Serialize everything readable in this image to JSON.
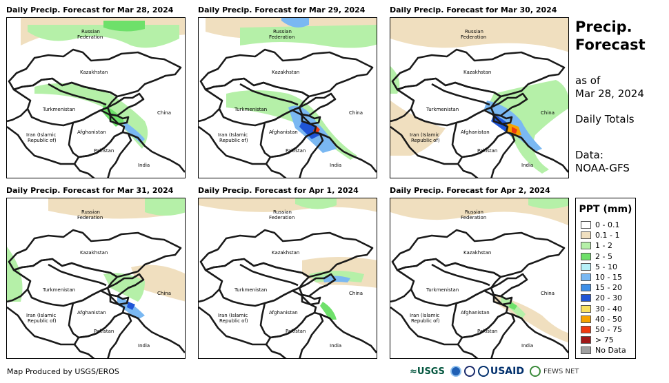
{
  "panels": [
    {
      "title": "Daily Precip. Forecast for Mar 28, 2024"
    },
    {
      "title": "Daily Precip. Forecast for Mar 29, 2024"
    },
    {
      "title": "Daily Precip. Forecast for Mar 30, 2024"
    },
    {
      "title": "Daily Precip. Forecast for Mar 31, 2024"
    },
    {
      "title": "Daily Precip. Forecast for Apr 1, 2024"
    },
    {
      "title": "Daily Precip. Forecast for Apr 2, 2024"
    }
  ],
  "map_labels": {
    "russia": "Russian",
    "russia2": "Federation",
    "kazakhstan": "Kazakhstan",
    "turkmenistan": "Turkmenistan",
    "china": "China",
    "iran": "Iran  (Islamic",
    "iran2": "Republic of)",
    "afghanistan": "Afghanistan",
    "pakistan": "Pakistan",
    "india": "India"
  },
  "sidebar": {
    "title_line1": "Precip.",
    "title_line2": "Forecast",
    "asof_line1": "as of",
    "asof_line2": "Mar 28, 2024",
    "totals": "Daily Totals",
    "data_line1": "Data:",
    "data_line2": "NOAA-GFS"
  },
  "legend": {
    "title": "PPT (mm)",
    "items": [
      {
        "label": "0 - 0.1",
        "color": "#ffffff"
      },
      {
        "label": "0.1 - 1",
        "color": "#f0dfbf"
      },
      {
        "label": "1 - 2",
        "color": "#b5f0a8"
      },
      {
        "label": "2 - 5",
        "color": "#6ee06a"
      },
      {
        "label": "5 - 10",
        "color": "#b6f0f8"
      },
      {
        "label": "10 - 15",
        "color": "#7ab8f2"
      },
      {
        "label": "15 - 20",
        "color": "#3d8fe8"
      },
      {
        "label": "20 - 30",
        "color": "#1f55d6"
      },
      {
        "label": "30 - 40",
        "color": "#f8e060"
      },
      {
        "label": "40 - 50",
        "color": "#f5a300"
      },
      {
        "label": "50 - 75",
        "color": "#ee3a10"
      },
      {
        "label": "> 75",
        "color": "#a01818"
      },
      {
        "label": "No Data",
        "color": "#a0a0a0"
      }
    ]
  },
  "footer": {
    "credit": "Map Produced by USGS/EROS",
    "logo_usgs": "≈USGS",
    "logo_usaid": "USAID",
    "logo_fews": "FEWS NET"
  }
}
